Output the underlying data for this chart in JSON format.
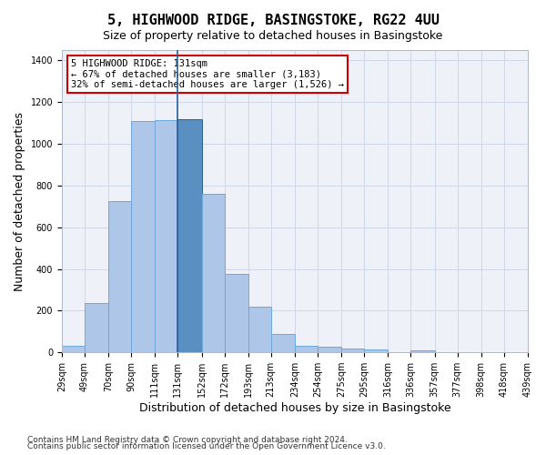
{
  "title": "5, HIGHWOOD RIDGE, BASINGSTOKE, RG22 4UU",
  "subtitle": "Size of property relative to detached houses in Basingstoke",
  "xlabel": "Distribution of detached houses by size in Basingstoke",
  "ylabel": "Number of detached properties",
  "footnote1": "Contains HM Land Registry data © Crown copyright and database right 2024.",
  "footnote2": "Contains public sector information licensed under the Open Government Licence v3.0.",
  "annotation_line1": "5 HIGHWOOD RIDGE: 131sqm",
  "annotation_line2": "← 67% of detached houses are smaller (3,183)",
  "annotation_line3": "32% of semi-detached houses are larger (1,526) →",
  "property_size": 131,
  "bar_edges": [
    29,
    49,
    70,
    90,
    111,
    131,
    152,
    172,
    193,
    213,
    234,
    254,
    275,
    295,
    316,
    336,
    357,
    377,
    398,
    418,
    439
  ],
  "bar_values": [
    30,
    235,
    725,
    1110,
    1115,
    1120,
    760,
    375,
    220,
    90,
    30,
    25,
    20,
    15,
    0,
    10,
    0,
    0,
    0,
    0
  ],
  "highlight_index": 5,
  "bar_color_normal": "#aec6e8",
  "bar_color_highlight": "#5a8fc2",
  "bar_edge_color": "#6fa8d8",
  "bar_highlight_edge_color": "#2a5f9a",
  "grid_color": "#d0d8e8",
  "bg_color": "#eef2f8",
  "annotation_box_edge": "#cc0000",
  "ylim": [
    0,
    1450
  ],
  "yticks": [
    0,
    200,
    400,
    600,
    800,
    1000,
    1200,
    1400
  ],
  "title_fontsize": 11,
  "subtitle_fontsize": 9,
  "xlabel_fontsize": 9,
  "ylabel_fontsize": 9,
  "annotation_fontsize": 7.5,
  "tick_fontsize": 7,
  "footnote_fontsize": 6.5
}
